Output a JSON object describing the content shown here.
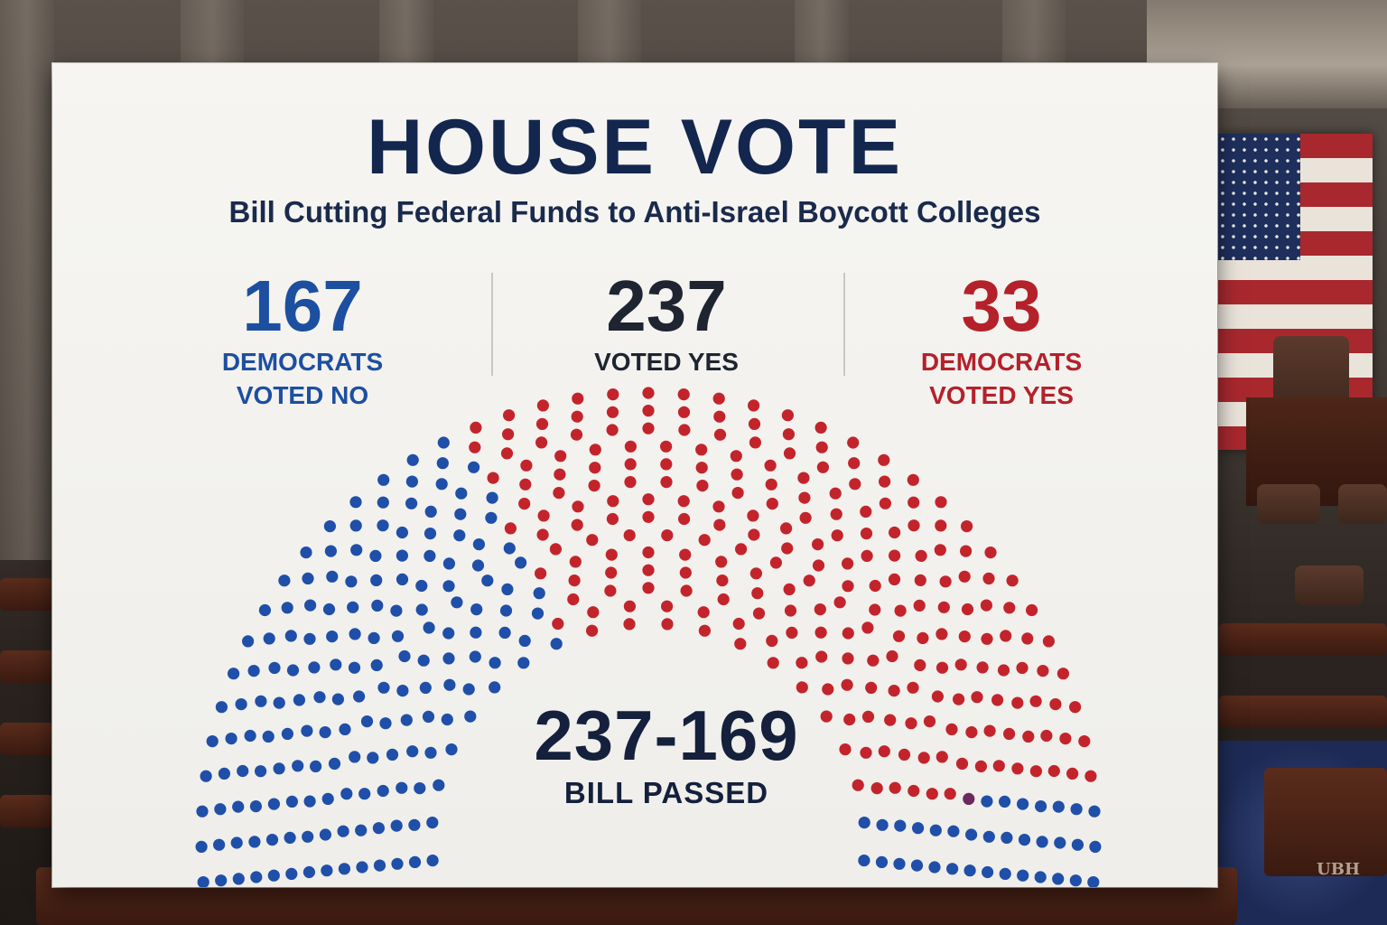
{
  "poster": {
    "title": "HOUSE VOTE",
    "subtitle": "Bill Cutting Federal Funds to Anti-Israel Boycott Colleges"
  },
  "stats": [
    {
      "number": "167",
      "label_line1": "DEMOCRATS",
      "label_line2": "VOTED NO",
      "color": "#1d4fa0"
    },
    {
      "number": "237",
      "label_line1": "VOTED YES",
      "label_line2": "",
      "color": "#1e2430"
    },
    {
      "number": "33",
      "label_line1": "DEMOCRATS",
      "label_line2": "VOTED YES",
      "color": "#b4212a"
    }
  ],
  "result": {
    "score": "237-169",
    "status": "BILL PASSED"
  },
  "watermark": "UBH",
  "chart_data": {
    "type": "parliament",
    "total_seats": 440,
    "segments": [
      {
        "label": "DEMOCRATS VOTED NO",
        "color": "#1f4fa8",
        "seats": 167
      },
      {
        "label": "VOTED YES",
        "color": "#c3242c",
        "seats": 237
      },
      {
        "label": "",
        "color": "#6b2a5a",
        "seats": 1
      },
      {
        "label": "",
        "color": "#1f4fa8",
        "seats": 35
      }
    ]
  }
}
